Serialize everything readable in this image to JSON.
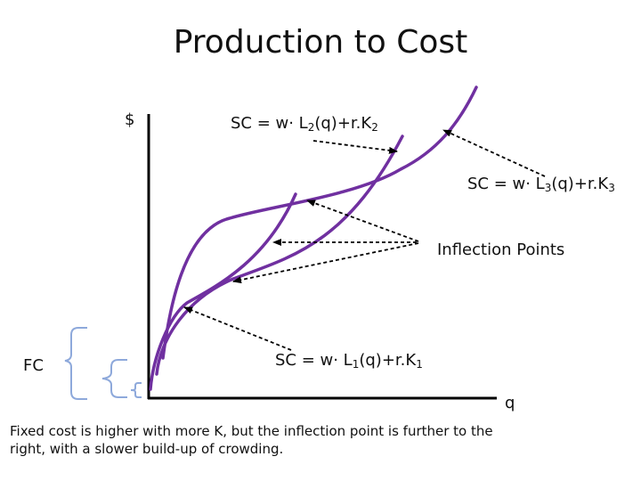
{
  "title": "Production to Cost",
  "axes": {
    "y_label": "$",
    "x_label": "q"
  },
  "fixed_cost_label": "FC",
  "curves": [
    {
      "id": "sc1",
      "prefix": "SC = w· L",
      "sub1": "1",
      "mid": "(q)+r.K",
      "sub2": "1"
    },
    {
      "id": "sc2",
      "prefix": "SC = w· L",
      "sub1": "2",
      "mid": "(q)+r.K",
      "sub2": "2"
    },
    {
      "id": "sc3",
      "prefix": "SC = w· L",
      "sub1": "3",
      "mid": "(q)+r.K",
      "sub2": "3"
    }
  ],
  "inflection_label": "Inflection Points",
  "caption": "Fixed cost is higher with more K, but the inflection point is further to the right, with a slower build-up of crowding.",
  "colors": {
    "curve": "#7030a0",
    "axis": "#000000",
    "bracket": "#8ea9db",
    "annotation": "#000000"
  }
}
